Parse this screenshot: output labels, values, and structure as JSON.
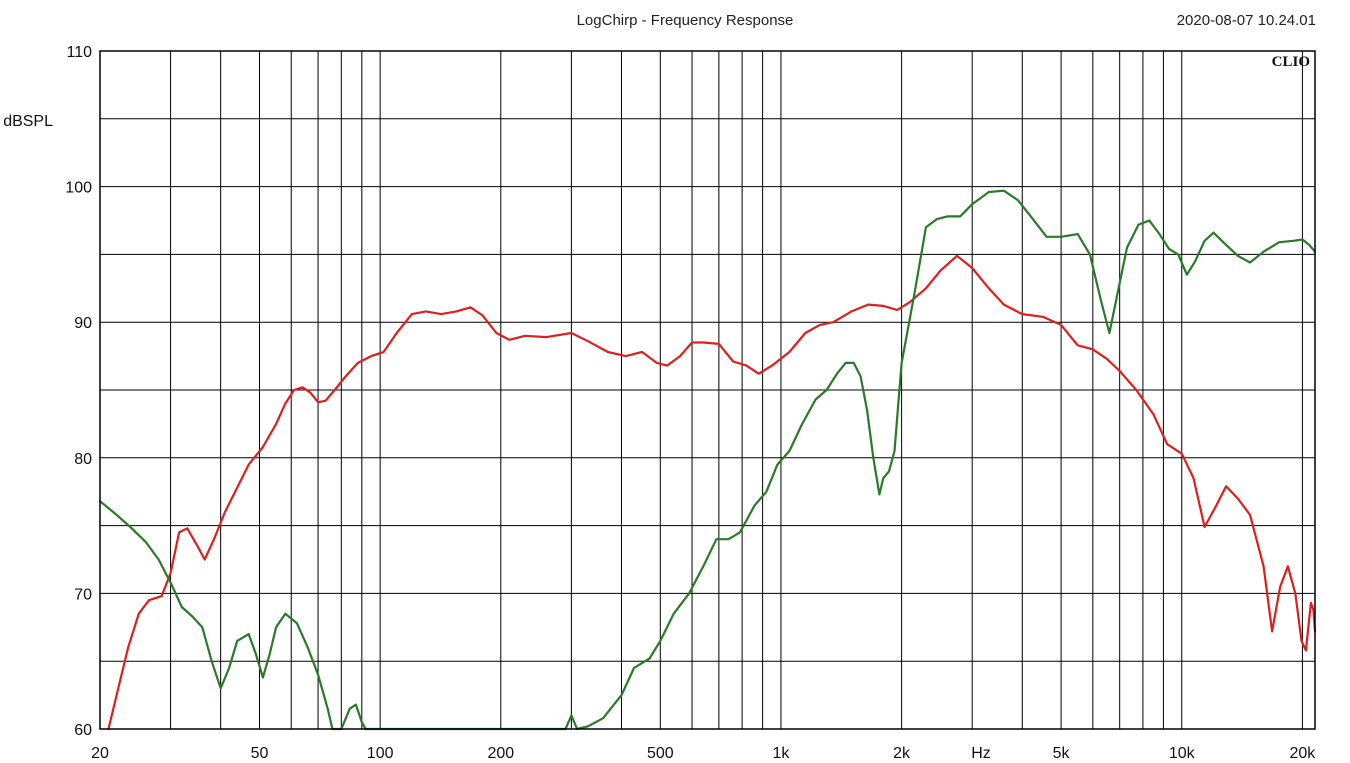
{
  "header": {
    "title": "LogChirp - Frequency Response",
    "timestamp": "2020-08-07 10.24.01",
    "brand": "CLIO"
  },
  "chart_data": {
    "type": "line",
    "title": "LogChirp - Frequency Response",
    "xlabel": "Hz",
    "ylabel": "dBSPL",
    "xscale": "log",
    "xlim": [
      20,
      21500
    ],
    "ylim": [
      60,
      110
    ],
    "grid": true,
    "x_ticks": [
      {
        "value": 20,
        "label": "20"
      },
      {
        "value": 50,
        "label": "50"
      },
      {
        "value": 100,
        "label": "100"
      },
      {
        "value": 200,
        "label": "200"
      },
      {
        "value": 500,
        "label": "500"
      },
      {
        "value": 1000,
        "label": "1k"
      },
      {
        "value": 2000,
        "label": "2k"
      },
      {
        "value": 5000,
        "label": "5k"
      },
      {
        "value": 10000,
        "label": "10k"
      },
      {
        "value": 20000,
        "label": "20k"
      }
    ],
    "y_ticks": [
      {
        "value": 60,
        "label": "60"
      },
      {
        "value": 70,
        "label": "70"
      },
      {
        "value": 80,
        "label": "80"
      },
      {
        "value": 90,
        "label": "90"
      },
      {
        "value": 100,
        "label": "100"
      },
      {
        "value": 110,
        "label": "110"
      }
    ],
    "series": [
      {
        "color": "#e01e1e",
        "points": [
          [
            21,
            60
          ],
          [
            22,
            62.5
          ],
          [
            23.5,
            66
          ],
          [
            25,
            68.5
          ],
          [
            26.5,
            69.5
          ],
          [
            28.5,
            69.8
          ],
          [
            30,
            71.5
          ],
          [
            31.5,
            74.5
          ],
          [
            33,
            74.8
          ],
          [
            35,
            73.5
          ],
          [
            36.5,
            72.5
          ],
          [
            38.5,
            74
          ],
          [
            41,
            76
          ],
          [
            44,
            77.8
          ],
          [
            47,
            79.5
          ],
          [
            51,
            80.8
          ],
          [
            55,
            82.5
          ],
          [
            58,
            84
          ],
          [
            61,
            85
          ],
          [
            64,
            85.2
          ],
          [
            67,
            84.8
          ],
          [
            70,
            84.1
          ],
          [
            73,
            84.2
          ],
          [
            77,
            85
          ],
          [
            82,
            86
          ],
          [
            88,
            87
          ],
          [
            95,
            87.5
          ],
          [
            102,
            87.8
          ],
          [
            110,
            89.2
          ],
          [
            120,
            90.6
          ],
          [
            130,
            90.8
          ],
          [
            142,
            90.6
          ],
          [
            155,
            90.8
          ],
          [
            168,
            91.1
          ],
          [
            180,
            90.5
          ],
          [
            195,
            89.2
          ],
          [
            210,
            88.7
          ],
          [
            230,
            89
          ],
          [
            260,
            88.9
          ],
          [
            300,
            89.2
          ],
          [
            330,
            88.6
          ],
          [
            370,
            87.8
          ],
          [
            410,
            87.5
          ],
          [
            450,
            87.8
          ],
          [
            490,
            87
          ],
          [
            520,
            86.8
          ],
          [
            560,
            87.5
          ],
          [
            600,
            88.5
          ],
          [
            640,
            88.5
          ],
          [
            700,
            88.4
          ],
          [
            760,
            87.1
          ],
          [
            820,
            86.8
          ],
          [
            880,
            86.2
          ],
          [
            950,
            86.8
          ],
          [
            1050,
            87.8
          ],
          [
            1150,
            89.2
          ],
          [
            1250,
            89.8
          ],
          [
            1350,
            90
          ],
          [
            1500,
            90.8
          ],
          [
            1650,
            91.3
          ],
          [
            1800,
            91.2
          ],
          [
            1950,
            90.9
          ],
          [
            2100,
            91.5
          ],
          [
            2300,
            92.5
          ],
          [
            2500,
            93.8
          ],
          [
            2750,
            94.9
          ],
          [
            3000,
            94
          ],
          [
            3300,
            92.5
          ],
          [
            3600,
            91.3
          ],
          [
            4000,
            90.6
          ],
          [
            4500,
            90.4
          ],
          [
            5000,
            89.8
          ],
          [
            5500,
            88.3
          ],
          [
            6000,
            88
          ],
          [
            6500,
            87.3
          ],
          [
            7000,
            86.4
          ],
          [
            7700,
            85
          ],
          [
            8500,
            83.2
          ],
          [
            9200,
            81
          ],
          [
            10000,
            80.3
          ],
          [
            10700,
            78.5
          ],
          [
            11400,
            74.9
          ],
          [
            12200,
            76.5
          ],
          [
            12900,
            77.9
          ],
          [
            13800,
            77
          ],
          [
            14800,
            75.8
          ],
          [
            16000,
            72
          ],
          [
            16800,
            67.2
          ],
          [
            17600,
            70.5
          ],
          [
            18400,
            72
          ],
          [
            19200,
            70
          ],
          [
            19900,
            66.5
          ],
          [
            20400,
            65.8
          ],
          [
            21000,
            69.3
          ],
          [
            21300,
            68.8
          ],
          [
            21500,
            67.2
          ]
        ]
      },
      {
        "color": "#2a7a2a",
        "points": [
          [
            20,
            76.8
          ],
          [
            22,
            75.8
          ],
          [
            24,
            74.8
          ],
          [
            26,
            73.8
          ],
          [
            28,
            72.5
          ],
          [
            30,
            70.8
          ],
          [
            32,
            69
          ],
          [
            34,
            68.3
          ],
          [
            36,
            67.5
          ],
          [
            38,
            65
          ],
          [
            40,
            63
          ],
          [
            42,
            64.5
          ],
          [
            44,
            66.5
          ],
          [
            47,
            67
          ],
          [
            49,
            65.5
          ],
          [
            51,
            63.8
          ],
          [
            53,
            65.5
          ],
          [
            55,
            67.5
          ],
          [
            58,
            68.5
          ],
          [
            62,
            67.8
          ],
          [
            66,
            66
          ],
          [
            70,
            64
          ],
          [
            74,
            61.5
          ],
          [
            76,
            60
          ],
          [
            80,
            60
          ],
          [
            84,
            61.5
          ],
          [
            87,
            61.8
          ],
          [
            90,
            60.5
          ],
          [
            92,
            60
          ],
          [
            290,
            60
          ],
          [
            300,
            61
          ],
          [
            310,
            60
          ],
          [
            330,
            60.2
          ],
          [
            360,
            60.8
          ],
          [
            400,
            62.5
          ],
          [
            430,
            64.5
          ],
          [
            470,
            65.2
          ],
          [
            500,
            66.5
          ],
          [
            540,
            68.5
          ],
          [
            590,
            70
          ],
          [
            640,
            72
          ],
          [
            690,
            74
          ],
          [
            740,
            74
          ],
          [
            790,
            74.5
          ],
          [
            860,
            76.5
          ],
          [
            920,
            77.5
          ],
          [
            980,
            79.5
          ],
          [
            1050,
            80.5
          ],
          [
            1130,
            82.5
          ],
          [
            1220,
            84.3
          ],
          [
            1300,
            85
          ],
          [
            1380,
            86.2
          ],
          [
            1450,
            87
          ],
          [
            1520,
            87
          ],
          [
            1580,
            86
          ],
          [
            1640,
            83.5
          ],
          [
            1700,
            80
          ],
          [
            1760,
            77.3
          ],
          [
            1800,
            78.5
          ],
          [
            1860,
            79
          ],
          [
            1920,
            80.5
          ],
          [
            2000,
            87
          ],
          [
            2150,
            92
          ],
          [
            2300,
            97
          ],
          [
            2450,
            97.6
          ],
          [
            2600,
            97.8
          ],
          [
            2800,
            97.8
          ],
          [
            3000,
            98.7
          ],
          [
            3300,
            99.6
          ],
          [
            3600,
            99.7
          ],
          [
            3900,
            99
          ],
          [
            4200,
            97.8
          ],
          [
            4600,
            96.3
          ],
          [
            5000,
            96.3
          ],
          [
            5500,
            96.5
          ],
          [
            5900,
            95
          ],
          [
            6300,
            91.5
          ],
          [
            6600,
            89.2
          ],
          [
            6900,
            92
          ],
          [
            7300,
            95.5
          ],
          [
            7800,
            97.2
          ],
          [
            8300,
            97.5
          ],
          [
            8800,
            96.5
          ],
          [
            9300,
            95.4
          ],
          [
            9800,
            95
          ],
          [
            10300,
            93.5
          ],
          [
            10800,
            94.5
          ],
          [
            11400,
            96
          ],
          [
            12000,
            96.6
          ],
          [
            12800,
            95.8
          ],
          [
            13800,
            94.9
          ],
          [
            14800,
            94.4
          ],
          [
            16000,
            95.2
          ],
          [
            17500,
            95.9
          ],
          [
            19000,
            96
          ],
          [
            20000,
            96.1
          ],
          [
            20800,
            95.7
          ],
          [
            21500,
            95.2
          ]
        ]
      }
    ]
  }
}
